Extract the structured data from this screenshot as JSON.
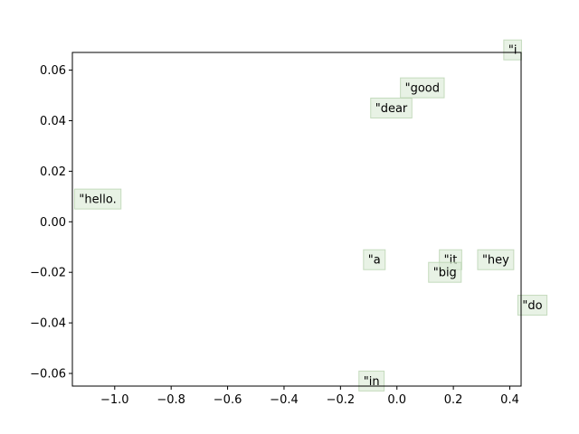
{
  "chart_data": {
    "type": "scatter",
    "title": "",
    "xlabel": "",
    "ylabel": "",
    "xlim": [
      -1.15,
      0.44
    ],
    "ylim": [
      -0.065,
      0.067
    ],
    "grid": false,
    "xticks": [
      -1.0,
      -0.8,
      -0.6,
      -0.4,
      -0.2,
      0.0,
      0.2,
      0.4
    ],
    "xtick_labels": [
      "−1.0",
      "−0.8",
      "−0.6",
      "−0.4",
      "−0.2",
      "0.0",
      "0.2",
      "0.4"
    ],
    "yticks": [
      0.06,
      0.04,
      0.02,
      0.0,
      -0.02,
      -0.04,
      -0.06
    ],
    "ytick_labels": [
      "0.06",
      "0.04",
      "0.02",
      "0.00",
      "−0.02",
      "−0.04",
      "−0.06"
    ],
    "label_box_color": "#d9ead3",
    "points": [
      {
        "label": "\"i",
        "x": 0.41,
        "y": 0.068
      },
      {
        "label": "\"good",
        "x": 0.09,
        "y": 0.053
      },
      {
        "label": "\"dear",
        "x": -0.02,
        "y": 0.045
      },
      {
        "label": "\"hello.",
        "x": -1.06,
        "y": 0.009
      },
      {
        "label": "\"a",
        "x": -0.08,
        "y": -0.015
      },
      {
        "label": "\"it",
        "x": 0.19,
        "y": -0.015
      },
      {
        "label": "\"hey",
        "x": 0.35,
        "y": -0.015
      },
      {
        "label": "\"big",
        "x": 0.17,
        "y": -0.02
      },
      {
        "label": "\"do",
        "x": 0.48,
        "y": -0.033
      },
      {
        "label": "\"in",
        "x": -0.09,
        "y": -0.063
      }
    ]
  }
}
